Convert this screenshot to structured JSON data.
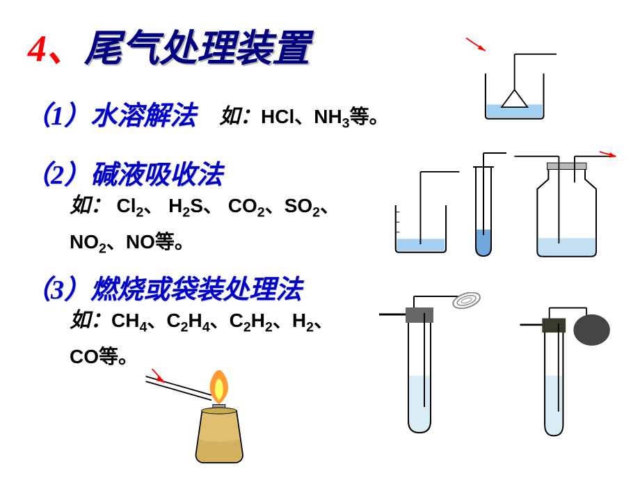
{
  "title": {
    "num": "4、",
    "text": "尾气处理装置"
  },
  "sections": {
    "s1": "（1）水溶解法",
    "s2": "（2）碱液吸收法",
    "s3": "（3）燃烧或袋装处理法"
  },
  "examples": {
    "e1_ru": "如：",
    "e1_body": "HCl、NH<sub>3</sub>等。",
    "e2_ru": "如： ",
    "e2_body": "Cl<sub>2</sub>、 H<sub>2</sub>S、 CO<sub>2</sub>、SO<sub>2</sub>、NO<sub>2</sub>、NO等。",
    "e3_ru": "如：",
    "e3_body": "CH<sub>4</sub>、C<sub>2</sub>H<sub>4</sub>、C<sub>2</sub>H<sub>2</sub>、H<sub>2</sub>、CO等。"
  },
  "colors": {
    "title_num": "#ff0000",
    "title_text": "#000080",
    "section": "#0000cc",
    "water": "#99ccff",
    "arrow": "#ff0000",
    "glass": "#000000",
    "flame_out": "#ff9933",
    "flame_in": "#ffff66",
    "burner_body": "#cc9933",
    "burner_neck": "#999999",
    "stopper": "#666666",
    "balloon": "#444444"
  }
}
